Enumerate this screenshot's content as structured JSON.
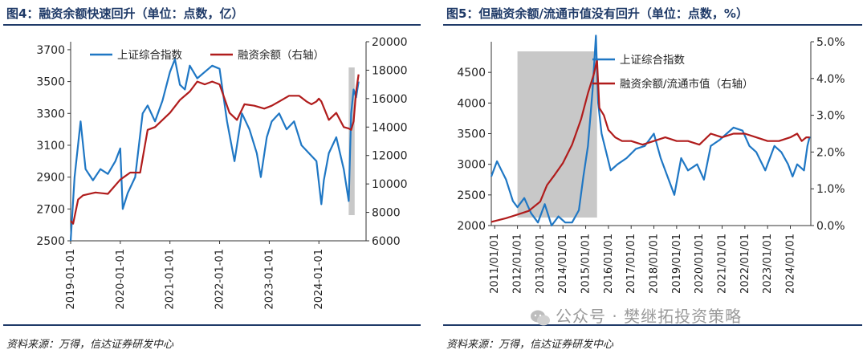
{
  "chart_data": [
    {
      "type": "line",
      "title": "图4：融资余额快速回升（单位：点数，亿）",
      "source": "资料来源：万得，信达证券研发中心",
      "x_tick_labels": [
        "2019-01-01",
        "2020-01-01",
        "2021-01-01",
        "2022-01-01",
        "2023-01-01",
        "2024-01-01"
      ],
      "xlim": [
        2019.0,
        2024.95
      ],
      "y_left": {
        "ticks": [
          2500,
          2700,
          2900,
          3100,
          3300,
          3500,
          3700
        ],
        "lim": [
          2500,
          3750
        ]
      },
      "y_right": {
        "ticks": [
          6000,
          8000,
          10000,
          12000,
          14000,
          16000,
          18000,
          20000
        ],
        "lim": [
          6000,
          20000
        ]
      },
      "highlight": {
        "x_start": 2024.6,
        "x_end": 2024.72,
        "color": "#c8c8c8"
      },
      "legend_position": "top-center",
      "series": [
        {
          "name": "上证综合指数",
          "axis": "left",
          "color": "#1f77c4",
          "x": [
            2019.0,
            2019.08,
            2019.2,
            2019.3,
            2019.45,
            2019.6,
            2019.75,
            2019.9,
            2020.0,
            2020.05,
            2020.15,
            2020.3,
            2020.45,
            2020.55,
            2020.7,
            2020.85,
            2021.0,
            2021.1,
            2021.2,
            2021.3,
            2021.4,
            2021.55,
            2021.7,
            2021.85,
            2022.0,
            2022.15,
            2022.3,
            2022.45,
            2022.6,
            2022.75,
            2022.83,
            2022.95,
            2023.05,
            2023.2,
            2023.35,
            2023.5,
            2023.65,
            2023.8,
            2023.95,
            2024.05,
            2024.1,
            2024.2,
            2024.35,
            2024.5,
            2024.6,
            2024.65,
            2024.7,
            2024.75,
            2024.8
          ],
          "y": [
            2500,
            2900,
            3250,
            2950,
            2880,
            2950,
            2920,
            3000,
            3080,
            2700,
            2800,
            2900,
            3300,
            3350,
            3250,
            3380,
            3560,
            3640,
            3480,
            3450,
            3600,
            3520,
            3560,
            3600,
            3580,
            3250,
            3000,
            3300,
            3200,
            3050,
            2900,
            3150,
            3250,
            3300,
            3200,
            3250,
            3100,
            3050,
            3000,
            2730,
            2880,
            3050,
            3150,
            2950,
            2750,
            3300,
            3450,
            3400,
            3500
          ]
        },
        {
          "name": "融资余额（右轴）",
          "axis": "right",
          "color": "#b01c1c",
          "x": [
            2019.0,
            2019.05,
            2019.15,
            2019.25,
            2019.5,
            2019.75,
            2020.0,
            2020.2,
            2020.4,
            2020.55,
            2020.7,
            2020.85,
            2021.0,
            2021.2,
            2021.4,
            2021.55,
            2021.7,
            2021.85,
            2022.0,
            2022.2,
            2022.35,
            2022.5,
            2022.7,
            2022.9,
            2023.05,
            2023.2,
            2023.4,
            2023.6,
            2023.75,
            2023.85,
            2023.95,
            2024.0,
            2024.05,
            2024.2,
            2024.35,
            2024.5,
            2024.6,
            2024.65,
            2024.7,
            2024.75,
            2024.8
          ],
          "y": [
            7400,
            7200,
            8900,
            9200,
            9400,
            9300,
            10300,
            10800,
            10800,
            13800,
            14000,
            14500,
            15000,
            15900,
            16500,
            17200,
            17000,
            17200,
            17000,
            15000,
            14500,
            15600,
            15500,
            15300,
            15500,
            15800,
            16200,
            16200,
            15800,
            15600,
            15800,
            16000,
            15800,
            14500,
            15000,
            14000,
            13900,
            13800,
            14400,
            16500,
            17700
          ]
        }
      ]
    },
    {
      "type": "line",
      "title": "图5：但融资余额/流通市值没有回升（单位：点数，%）",
      "source": "资料来源：万得，信达证券研发中心",
      "x_tick_labels": [
        "2011/01/01",
        "2012/01/01",
        "2013/01/01",
        "2014/01/01",
        "2015/01/01",
        "2016/01/01",
        "2017/01/01",
        "2018/01/01",
        "2019/01/01",
        "2020/01/01",
        "2021/01/01",
        "2022/01/01",
        "2023/01/01",
        "2024/01/01"
      ],
      "xlim": [
        2010.85,
        2024.9
      ],
      "y_left": {
        "ticks": [
          2000,
          2500,
          3000,
          3500,
          4000,
          4500
        ],
        "lim": [
          2000,
          5000
        ]
      },
      "y_right": {
        "ticks": [
          "0.0%",
          "1.0%",
          "2.0%",
          "3.0%",
          "4.0%",
          "5.0%"
        ],
        "lim": [
          0,
          5
        ]
      },
      "highlight": {
        "x_start": 2012.0,
        "x_end": 2015.5,
        "color": "#c8c8c8"
      },
      "legend_position": "top-center",
      "series": [
        {
          "name": "上证综合指数",
          "axis": "left",
          "color": "#1f77c4",
          "x": [
            2010.85,
            2011.1,
            2011.3,
            2011.5,
            2011.8,
            2012.0,
            2012.3,
            2012.6,
            2012.9,
            2013.2,
            2013.5,
            2013.8,
            2014.1,
            2014.4,
            2014.7,
            2014.9,
            2015.1,
            2015.3,
            2015.45,
            2015.55,
            2015.7,
            2015.9,
            2016.1,
            2016.4,
            2016.8,
            2017.2,
            2017.6,
            2018.0,
            2018.3,
            2018.6,
            2018.9,
            2019.2,
            2019.5,
            2019.9,
            2020.2,
            2020.5,
            2020.9,
            2021.2,
            2021.5,
            2021.9,
            2022.2,
            2022.5,
            2022.9,
            2023.3,
            2023.6,
            2023.9,
            2024.1,
            2024.3,
            2024.6,
            2024.75,
            2024.85
          ],
          "y": [
            2800,
            3050,
            2900,
            2750,
            2400,
            2300,
            2450,
            2200,
            2050,
            2350,
            2000,
            2150,
            2050,
            2050,
            2250,
            2800,
            3300,
            4200,
            5100,
            4000,
            3500,
            3200,
            2900,
            3000,
            3100,
            3250,
            3300,
            3500,
            3100,
            2800,
            2500,
            3100,
            2900,
            3000,
            2750,
            3300,
            3400,
            3500,
            3600,
            3550,
            3300,
            3200,
            2900,
            3300,
            3200,
            3000,
            2800,
            3000,
            2900,
            3300,
            3450
          ]
        },
        {
          "name": "融资余额/流通市值（右轴）",
          "axis": "right",
          "color": "#b01c1c",
          "x": [
            2010.85,
            2011.5,
            2012.0,
            2012.5,
            2013.0,
            2013.3,
            2013.6,
            2014.0,
            2014.4,
            2014.8,
            2015.1,
            2015.35,
            2015.5,
            2015.6,
            2015.8,
            2016.0,
            2016.3,
            2016.6,
            2017.0,
            2017.5,
            2018.0,
            2018.5,
            2019.0,
            2019.5,
            2020.0,
            2020.5,
            2021.0,
            2021.5,
            2022.0,
            2022.5,
            2023.0,
            2023.5,
            2024.0,
            2024.3,
            2024.5,
            2024.7,
            2024.85
          ],
          "y": [
            0.1,
            0.2,
            0.3,
            0.4,
            0.65,
            1.1,
            1.35,
            1.7,
            2.2,
            2.9,
            3.6,
            4.1,
            4.5,
            3.2,
            3.0,
            2.6,
            2.4,
            2.3,
            2.3,
            2.2,
            2.3,
            2.4,
            2.3,
            2.3,
            2.2,
            2.5,
            2.4,
            2.5,
            2.5,
            2.4,
            2.3,
            2.3,
            2.4,
            2.5,
            2.3,
            2.4,
            2.4
          ]
        }
      ]
    }
  ],
  "watermark": "公众号 · 樊继拓投资策略"
}
